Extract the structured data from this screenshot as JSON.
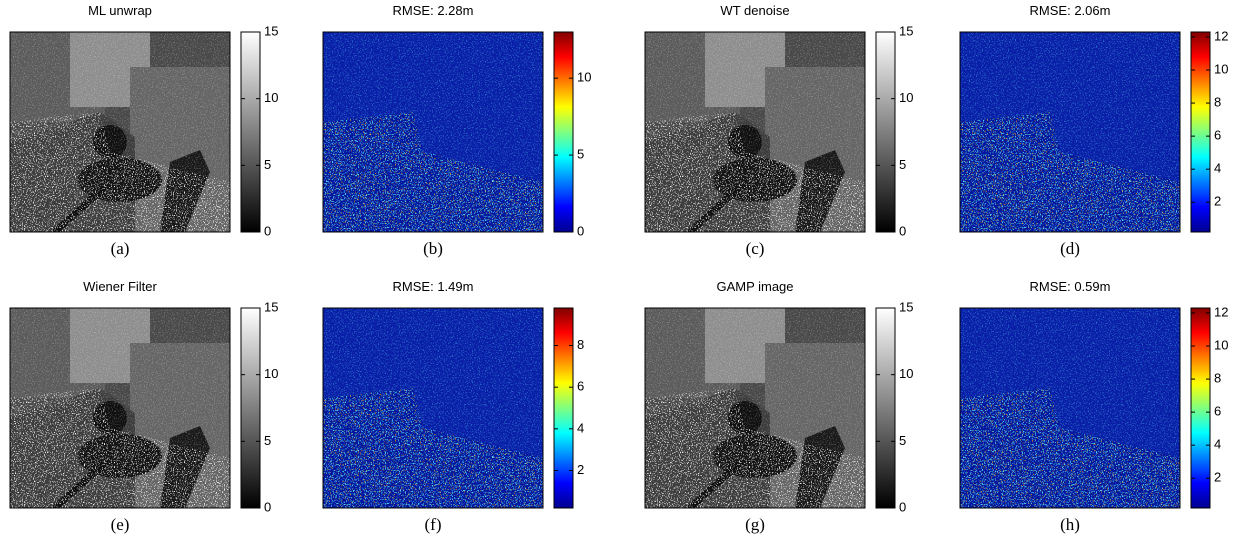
{
  "panels": [
    {
      "label": "(a)",
      "title": "ML unwrap",
      "colormap": "gray",
      "clim": [
        0,
        15
      ],
      "cticks": [
        0,
        5,
        10,
        15
      ]
    },
    {
      "label": "(b)",
      "title": "RMSE: 2.28m",
      "colormap": "jet",
      "clim": [
        0,
        13
      ],
      "cticks": [
        0,
        5,
        10
      ]
    },
    {
      "label": "(c)",
      "title": "WT denoise",
      "colormap": "gray",
      "clim": [
        0,
        15
      ],
      "cticks": [
        0,
        5,
        10,
        15
      ]
    },
    {
      "label": "(d)",
      "title": "RMSE: 2.06m",
      "colormap": "jet",
      "clim": [
        0.2,
        12.3
      ],
      "cticks": [
        2,
        4,
        6,
        8,
        10,
        12
      ]
    },
    {
      "label": "(e)",
      "title": "Wiener Filter",
      "colormap": "gray",
      "clim": [
        0,
        15
      ],
      "cticks": [
        0,
        5,
        10,
        15
      ]
    },
    {
      "label": "(f)",
      "title": "RMSE: 1.49m",
      "colormap": "jet",
      "clim": [
        0.2,
        9.8
      ],
      "cticks": [
        2,
        4,
        6,
        8
      ]
    },
    {
      "label": "(g)",
      "title": "GAMP image",
      "colormap": "gray",
      "clim": [
        0,
        15
      ],
      "cticks": [
        0,
        5,
        10,
        15
      ]
    },
    {
      "label": "(h)",
      "title": "RMSE: 0.59m",
      "colormap": "jet",
      "clim": [
        0.2,
        12.3
      ],
      "cticks": [
        2,
        4,
        6,
        8,
        10,
        12
      ]
    }
  ]
}
